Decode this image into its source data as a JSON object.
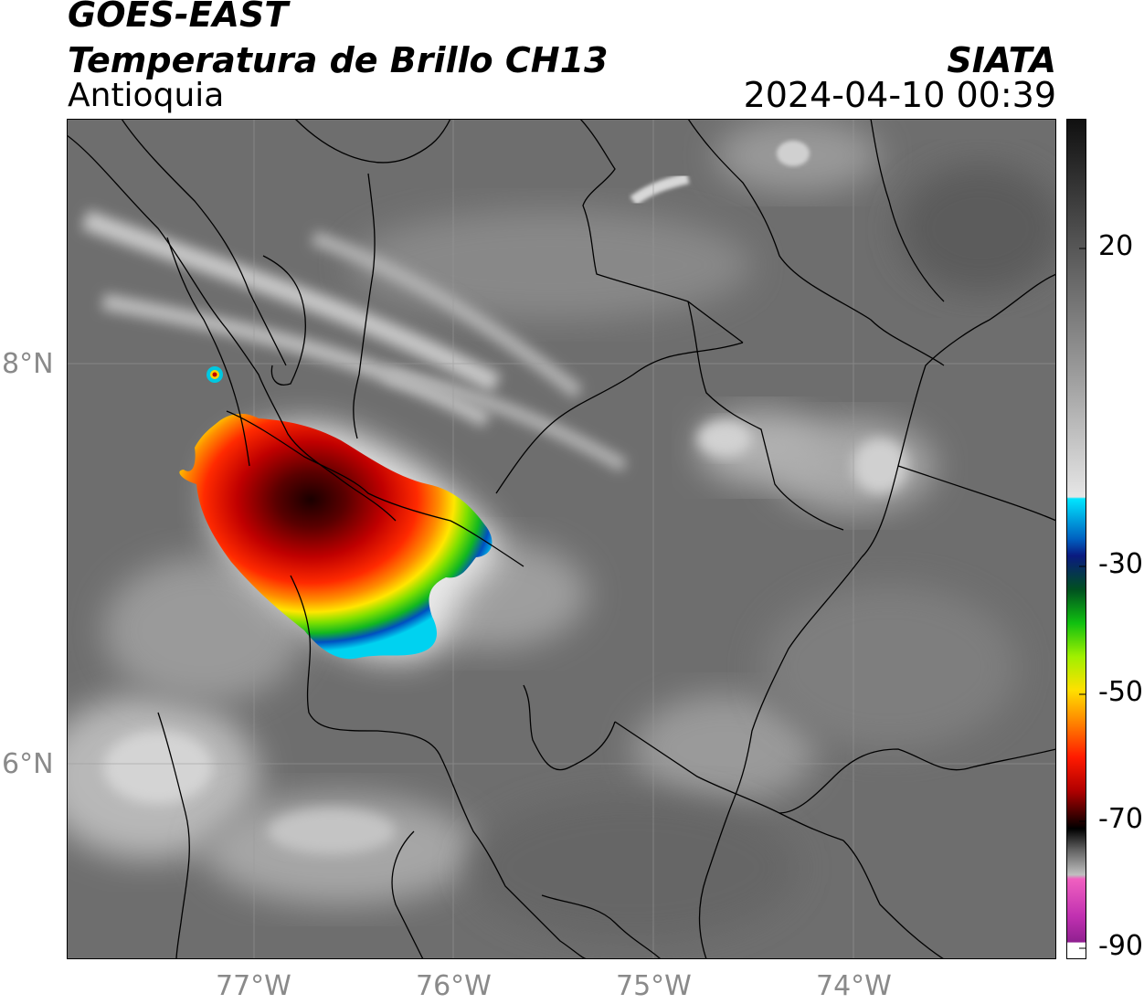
{
  "header": {
    "satellite": "GOES-EAST",
    "product": "Temperatura de Brillo CH13",
    "region": "Antioquia",
    "org": "SIATA",
    "datetime": "2024-04-10 00:39"
  },
  "map": {
    "lon_ticks": [
      "77°W",
      "76°W",
      "75°W",
      "74°W"
    ],
    "lat_ticks": [
      "8°N",
      "6°N"
    ]
  },
  "colorbar": {
    "labels": [
      "20",
      "-30",
      "-50",
      "-70",
      "-90"
    ]
  }
}
